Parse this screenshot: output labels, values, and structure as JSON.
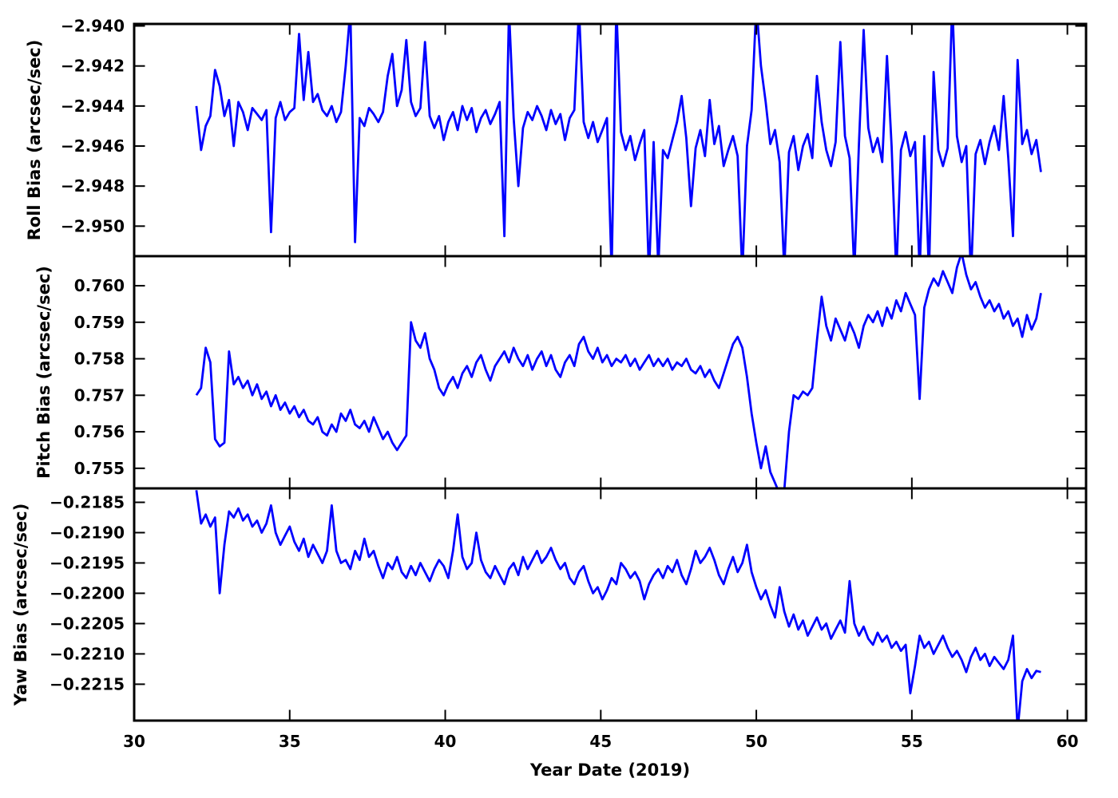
{
  "figure": {
    "background": "#ffffff",
    "line_color": "#0000ff",
    "frame_color": "#000000"
  },
  "chart_data": {
    "type": "line",
    "title": "",
    "xlabel": "Year Date (2019)",
    "xlim": [
      30,
      60.6
    ],
    "x_ticks": [
      30,
      35,
      40,
      45,
      50,
      55,
      60
    ],
    "x_start": 32.0,
    "x_step": 0.15,
    "grid": false,
    "legend": "none",
    "panels": [
      {
        "name": "roll",
        "ylabel": "Roll Bias (arcsec/sec)",
        "ylim": [
          -2.9515,
          -2.9399
        ],
        "y_ticks": [
          -2.94,
          -2.942,
          -2.944,
          -2.946,
          -2.948,
          -2.95
        ],
        "y_tick_labels": [
          "−2.940",
          "−2.942",
          "−2.944",
          "−2.946",
          "−2.948",
          "−2.950"
        ],
        "values": [
          -2.944,
          -2.9462,
          -2.945,
          -2.9445,
          -2.9422,
          -2.943,
          -2.9445,
          -2.9437,
          -2.946,
          -2.9438,
          -2.9443,
          -2.9452,
          -2.9441,
          -2.9444,
          -2.9447,
          -2.9442,
          -2.9503,
          -2.9446,
          -2.9438,
          -2.9447,
          -2.9443,
          -2.9441,
          -2.9404,
          -2.9437,
          -2.9413,
          -2.9438,
          -2.9434,
          -2.9442,
          -2.9445,
          -2.944,
          -2.9448,
          -2.9443,
          -2.942,
          -2.9392,
          -2.9508,
          -2.9446,
          -2.945,
          -2.9441,
          -2.9444,
          -2.9448,
          -2.9443,
          -2.9425,
          -2.9414,
          -2.944,
          -2.9432,
          -2.9407,
          -2.9438,
          -2.9445,
          -2.9441,
          -2.9408,
          -2.9445,
          -2.9451,
          -2.9445,
          -2.9457,
          -2.9448,
          -2.9443,
          -2.9452,
          -2.944,
          -2.9447,
          -2.9441,
          -2.9453,
          -2.9446,
          -2.9442,
          -2.9449,
          -2.9444,
          -2.9438,
          -2.9505,
          -2.9392,
          -2.9446,
          -2.948,
          -2.9451,
          -2.9443,
          -2.9447,
          -2.944,
          -2.9445,
          -2.9452,
          -2.9442,
          -2.9449,
          -2.9444,
          -2.9457,
          -2.9446,
          -2.9442,
          -2.9391,
          -2.9448,
          -2.9456,
          -2.9448,
          -2.9458,
          -2.9452,
          -2.9446,
          -2.9523,
          -2.939,
          -2.9453,
          -2.9462,
          -2.9455,
          -2.9467,
          -2.9459,
          -2.9452,
          -2.9525,
          -2.9458,
          -2.9521,
          -2.9462,
          -2.9466,
          -2.9457,
          -2.9448,
          -2.9435,
          -2.9456,
          -2.949,
          -2.9461,
          -2.9452,
          -2.9465,
          -2.9437,
          -2.9459,
          -2.945,
          -2.947,
          -2.9462,
          -2.9455,
          -2.9465,
          -2.9524,
          -2.946,
          -2.9442,
          -2.9389,
          -2.942,
          -2.9438,
          -2.9459,
          -2.9452,
          -2.9468,
          -2.9522,
          -2.9463,
          -2.9455,
          -2.9472,
          -2.946,
          -2.9454,
          -2.9466,
          -2.9425,
          -2.9448,
          -2.9462,
          -2.947,
          -2.9458,
          -2.9408,
          -2.9455,
          -2.9466,
          -2.9523,
          -2.9459,
          -2.9402,
          -2.9451,
          -2.9463,
          -2.9456,
          -2.9468,
          -2.9415,
          -2.946,
          -2.9524,
          -2.9462,
          -2.9453,
          -2.9465,
          -2.9458,
          -2.9523,
          -2.9455,
          -2.9525,
          -2.9423,
          -2.9462,
          -2.947,
          -2.9461,
          -2.9388,
          -2.9455,
          -2.9468,
          -2.946,
          -2.9526,
          -2.9464,
          -2.9457,
          -2.9469,
          -2.9458,
          -2.945,
          -2.9462,
          -2.9435,
          -2.9466,
          -2.9505,
          -2.9417,
          -2.9459,
          -2.9452,
          -2.9464,
          -2.9457,
          -2.9473
        ]
      },
      {
        "name": "pitch",
        "ylabel": "Pitch Bias (arcsec/sec)",
        "ylim": [
          0.75445,
          0.76081
        ],
        "y_ticks": [
          0.76,
          0.759,
          0.758,
          0.757,
          0.756,
          0.755
        ],
        "y_tick_labels": [
          "0.760",
          "0.759",
          "0.758",
          "0.757",
          "0.756",
          "0.755"
        ],
        "values": [
          0.757,
          0.7572,
          0.7583,
          0.7579,
          0.7558,
          0.7556,
          0.7557,
          0.7582,
          0.7573,
          0.7575,
          0.7572,
          0.7574,
          0.757,
          0.7573,
          0.7569,
          0.7571,
          0.7567,
          0.757,
          0.7566,
          0.7568,
          0.7565,
          0.7567,
          0.7564,
          0.7566,
          0.7563,
          0.7562,
          0.7564,
          0.756,
          0.7559,
          0.7562,
          0.756,
          0.7565,
          0.7563,
          0.7566,
          0.7562,
          0.7561,
          0.7563,
          0.756,
          0.7564,
          0.7561,
          0.7558,
          0.756,
          0.7557,
          0.7555,
          0.7557,
          0.7559,
          0.759,
          0.7585,
          0.7583,
          0.7587,
          0.758,
          0.7577,
          0.7572,
          0.757,
          0.7573,
          0.7575,
          0.7572,
          0.7576,
          0.7578,
          0.7575,
          0.7579,
          0.7581,
          0.7577,
          0.7574,
          0.7578,
          0.758,
          0.7582,
          0.7579,
          0.7583,
          0.758,
          0.7578,
          0.7581,
          0.7577,
          0.758,
          0.7582,
          0.7578,
          0.7581,
          0.7577,
          0.7575,
          0.7579,
          0.7581,
          0.7578,
          0.7584,
          0.7586,
          0.7582,
          0.758,
          0.7583,
          0.7579,
          0.7581,
          0.7578,
          0.758,
          0.7579,
          0.7581,
          0.7578,
          0.758,
          0.7577,
          0.7579,
          0.7581,
          0.7578,
          0.758,
          0.7578,
          0.758,
          0.7577,
          0.7579,
          0.7578,
          0.758,
          0.7577,
          0.7576,
          0.7578,
          0.7575,
          0.7577,
          0.7574,
          0.7572,
          0.7576,
          0.758,
          0.7584,
          0.7586,
          0.7583,
          0.7575,
          0.7565,
          0.7557,
          0.755,
          0.7556,
          0.7549,
          0.7546,
          0.7543,
          0.7544,
          0.756,
          0.757,
          0.7569,
          0.7571,
          0.757,
          0.7572,
          0.7585,
          0.7597,
          0.7589,
          0.7585,
          0.7591,
          0.7588,
          0.7585,
          0.759,
          0.7587,
          0.7583,
          0.7589,
          0.7592,
          0.759,
          0.7593,
          0.7589,
          0.7594,
          0.7591,
          0.7596,
          0.7593,
          0.7598,
          0.7595,
          0.7592,
          0.7569,
          0.7594,
          0.7599,
          0.7602,
          0.76,
          0.7604,
          0.7601,
          0.7598,
          0.7605,
          0.7609,
          0.7603,
          0.7599,
          0.7601,
          0.7597,
          0.7594,
          0.7596,
          0.7593,
          0.7595,
          0.7591,
          0.7593,
          0.7589,
          0.7591,
          0.7586,
          0.7592,
          0.7588,
          0.7591,
          0.7598
        ]
      },
      {
        "name": "yaw",
        "ylabel": "Yaw Bias (arcsec/sec)",
        "ylim": [
          -0.2221,
          -0.21827
        ],
        "y_ticks": [
          -0.2185,
          -0.219,
          -0.2195,
          -0.22,
          -0.2205,
          -0.221,
          -0.2215
        ],
        "y_tick_labels": [
          "−0.2185",
          "−0.2190",
          "−0.2195",
          "−0.2200",
          "−0.2205",
          "−0.2210",
          "−0.2215"
        ],
        "values": [
          -0.2183,
          -0.21885,
          -0.2187,
          -0.2189,
          -0.21875,
          -0.22,
          -0.2192,
          -0.21865,
          -0.21875,
          -0.2186,
          -0.2188,
          -0.2187,
          -0.2189,
          -0.2188,
          -0.219,
          -0.21885,
          -0.21855,
          -0.219,
          -0.2192,
          -0.21905,
          -0.2189,
          -0.21915,
          -0.2193,
          -0.2191,
          -0.2194,
          -0.2192,
          -0.21935,
          -0.2195,
          -0.2193,
          -0.21855,
          -0.2193,
          -0.2195,
          -0.21945,
          -0.2196,
          -0.2193,
          -0.21945,
          -0.2191,
          -0.2194,
          -0.2193,
          -0.21955,
          -0.21975,
          -0.2195,
          -0.2196,
          -0.2194,
          -0.21965,
          -0.21975,
          -0.21955,
          -0.2197,
          -0.2195,
          -0.21965,
          -0.2198,
          -0.2196,
          -0.21945,
          -0.21955,
          -0.21975,
          -0.2193,
          -0.2187,
          -0.2194,
          -0.2196,
          -0.2195,
          -0.219,
          -0.21945,
          -0.21965,
          -0.21975,
          -0.21955,
          -0.2197,
          -0.21985,
          -0.2196,
          -0.2195,
          -0.2197,
          -0.2194,
          -0.2196,
          -0.21945,
          -0.2193,
          -0.2195,
          -0.2194,
          -0.21925,
          -0.21945,
          -0.2196,
          -0.2195,
          -0.21975,
          -0.21985,
          -0.21965,
          -0.21955,
          -0.2198,
          -0.22,
          -0.2199,
          -0.2201,
          -0.21995,
          -0.21975,
          -0.21985,
          -0.2195,
          -0.2196,
          -0.21975,
          -0.21965,
          -0.2198,
          -0.2201,
          -0.21985,
          -0.2197,
          -0.2196,
          -0.21975,
          -0.21955,
          -0.21965,
          -0.21945,
          -0.2197,
          -0.21985,
          -0.2196,
          -0.2193,
          -0.2195,
          -0.2194,
          -0.21925,
          -0.21945,
          -0.2197,
          -0.21985,
          -0.2196,
          -0.2194,
          -0.21965,
          -0.2195,
          -0.2192,
          -0.21965,
          -0.2199,
          -0.2201,
          -0.21995,
          -0.2202,
          -0.2204,
          -0.2199,
          -0.2203,
          -0.22055,
          -0.22035,
          -0.2206,
          -0.22045,
          -0.2207,
          -0.22055,
          -0.2204,
          -0.2206,
          -0.2205,
          -0.22075,
          -0.2206,
          -0.22045,
          -0.22065,
          -0.2198,
          -0.2205,
          -0.2207,
          -0.22055,
          -0.22075,
          -0.22085,
          -0.22065,
          -0.2208,
          -0.2207,
          -0.2209,
          -0.2208,
          -0.22095,
          -0.22085,
          -0.22165,
          -0.2212,
          -0.2207,
          -0.2209,
          -0.2208,
          -0.221,
          -0.22085,
          -0.2207,
          -0.2209,
          -0.22105,
          -0.22095,
          -0.2211,
          -0.2213,
          -0.22105,
          -0.2209,
          -0.2211,
          -0.221,
          -0.2212,
          -0.22105,
          -0.22115,
          -0.22125,
          -0.2211,
          -0.2207,
          -0.22225,
          -0.22145,
          -0.22125,
          -0.2214,
          -0.22128,
          -0.2213
        ]
      }
    ]
  }
}
